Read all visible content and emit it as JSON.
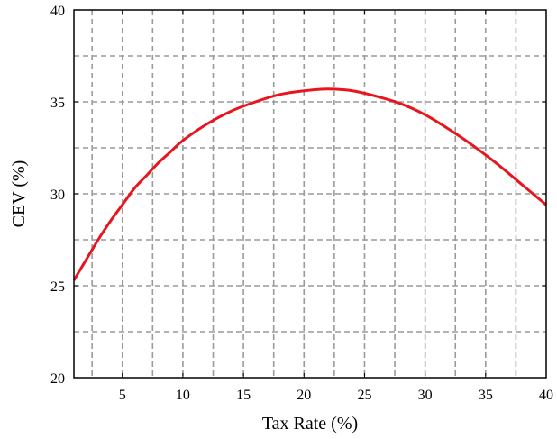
{
  "chart_data": {
    "type": "line",
    "title": "",
    "xlabel": "Tax Rate (%)",
    "ylabel": "CEV (%)",
    "xlim": [
      1,
      40
    ],
    "ylim": [
      20,
      40
    ],
    "x_ticks": [
      5,
      10,
      15,
      20,
      25,
      30,
      35,
      40
    ],
    "y_ticks": [
      20,
      25,
      30,
      35,
      40
    ],
    "grid": true,
    "grid_style": "dashed",
    "legend": "none",
    "series": [
      {
        "color": "#e8141e",
        "x": [
          1,
          2,
          3,
          4,
          5,
          6,
          7,
          8,
          9,
          10,
          12,
          14,
          16,
          18,
          20,
          22,
          24,
          26,
          28,
          30,
          32,
          34,
          36,
          38,
          40
        ],
        "y": [
          25.3,
          26.4,
          27.5,
          28.5,
          29.4,
          30.3,
          31.0,
          31.7,
          32.3,
          32.9,
          33.8,
          34.5,
          35.0,
          35.4,
          35.6,
          35.7,
          35.6,
          35.3,
          34.9,
          34.3,
          33.5,
          32.6,
          31.6,
          30.5,
          29.4
        ]
      }
    ]
  }
}
